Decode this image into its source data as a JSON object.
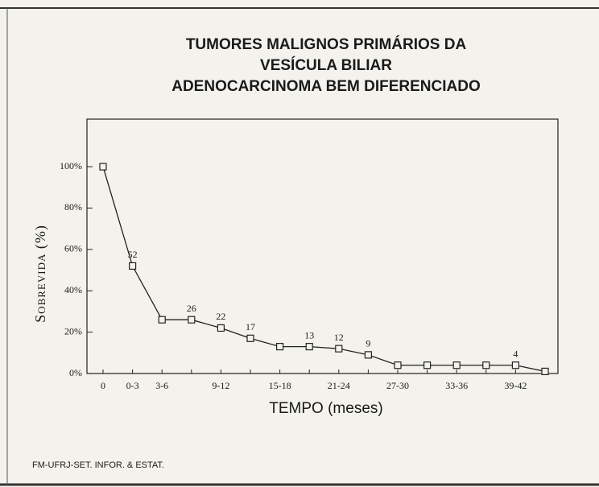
{
  "chart_data": {
    "type": "line",
    "title": [
      "TUMORES MALIGNOS PRIMÁRIOS DA",
      "VESÍCULA BILIAR",
      "ADENOCARCINOMA BEM DIFERENCIADO"
    ],
    "x_label": "TEMPO (meses)",
    "y_label": "Sobrevida (%)",
    "footer": "FM-UFRJ-SET. INFOR. & ESTAT.",
    "categories": [
      "0",
      "0-3",
      "3-6",
      null,
      "9-12",
      null,
      "15-18",
      null,
      "21-24",
      null,
      "27-30",
      null,
      "33-36",
      null,
      "39-42",
      null
    ],
    "series": [
      {
        "name": null,
        "color": "#222222",
        "values": [
          100,
          52,
          26,
          26,
          22,
          17,
          13,
          13,
          12,
          9,
          4,
          4,
          4,
          4,
          4,
          1
        ],
        "value_labels": [
          null,
          52,
          null,
          26,
          22,
          17,
          null,
          13,
          12,
          9,
          null,
          null,
          null,
          null,
          4,
          null
        ]
      }
    ],
    "ylim": [
      0,
      123
    ],
    "yticks": [
      {
        "value": 0,
        "label": "0%"
      },
      {
        "value": 20,
        "label": "20%"
      },
      {
        "value": 40,
        "label": "40%"
      },
      {
        "value": 60,
        "label": "60%"
      },
      {
        "value": 80,
        "label": "80%"
      },
      {
        "value": 100,
        "label": "100%"
      }
    ],
    "marker": "square",
    "grid": false
  }
}
